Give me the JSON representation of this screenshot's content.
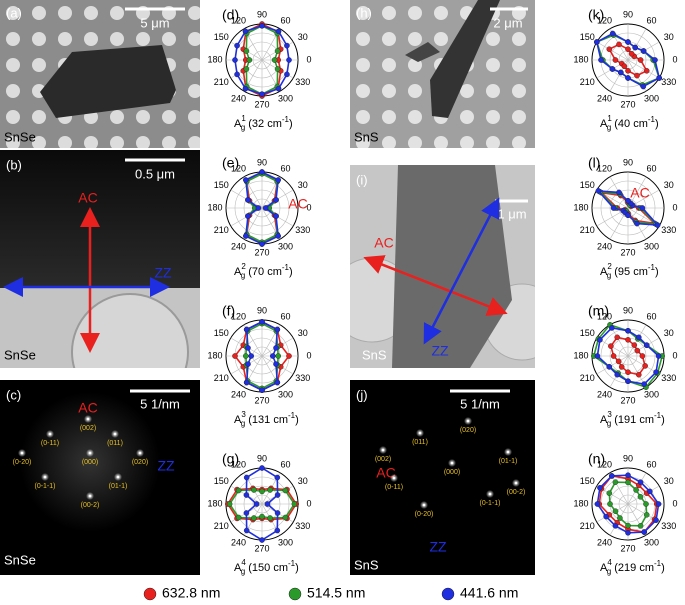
{
  "figure": {
    "image_panels": [
      {
        "label": "(a)",
        "scale_bar": "5 μm",
        "sample": "SnSe"
      },
      {
        "label": "(b)",
        "scale_bar": "0.5 μm",
        "sample": "SnSe",
        "ac": "AC",
        "zz": "ZZ"
      },
      {
        "label": "(c)",
        "scale_bar": "5 1/nm",
        "sample": "SnSe",
        "ac": "AC",
        "zz": "ZZ",
        "spots": [
          "(002)",
          "(0-11)",
          "(011)",
          "(0-20)",
          "(000)",
          "(020)",
          "(0-1-1)",
          "(01-1)",
          "(00-2)"
        ]
      },
      {
        "label": "(h)",
        "scale_bar": "2 μm",
        "sample": "SnS"
      },
      {
        "label": "(i)",
        "scale_bar": "1 μm",
        "sample": "SnS",
        "ac": "AC",
        "zz": "ZZ"
      },
      {
        "label": "(j)",
        "scale_bar": "5 1/nm",
        "sample": "SnS",
        "ac": "AC",
        "zz": "ZZ",
        "spots": [
          "(020)",
          "(002)",
          "(011)",
          "(01-1)",
          "(000)",
          "(0-11)",
          "(00-2)",
          "(0-1-1)",
          "(0-20)"
        ]
      }
    ],
    "polar": {
      "theta_ticks": [
        0,
        30,
        60,
        90,
        120,
        150,
        180,
        210,
        240,
        270,
        300,
        330
      ],
      "rlim": [
        0,
        1
      ],
      "rticks": [
        0.25,
        0.5,
        0.75,
        1
      ],
      "series": [
        {
          "name": "632.8 nm",
          "color": "#e8201e"
        },
        {
          "name": "514.5 nm",
          "color": "#2a9b2a"
        },
        {
          "name": "441.6 nm",
          "color": "#1e2ee0"
        }
      ],
      "plots": [
        {
          "label": "(d)",
          "mode": "A",
          "mode_sub": "g",
          "mode_sup": "1",
          "freq": "(32 cm",
          "freq_sup": "-1",
          "freq_end": ")",
          "values": [
            [
              0.45,
              0.6,
              0.9,
              1,
              0.9,
              0.6,
              0.45,
              0.6,
              0.9,
              1,
              0.9,
              0.6
            ],
            [
              0.35,
              0.5,
              0.85,
              0.95,
              0.85,
              0.5,
              0.35,
              0.5,
              0.85,
              0.95,
              0.85,
              0.5
            ],
            [
              0.75,
              0.8,
              0.92,
              0.95,
              0.92,
              0.8,
              0.75,
              0.8,
              0.92,
              0.95,
              0.92,
              0.8
            ]
          ]
        },
        {
          "label": "(e)",
          "mode": "A",
          "mode_sub": "g",
          "mode_sup": "2",
          "freq": "(70 cm",
          "freq_sup": "-1",
          "freq_end": ")",
          "ac": "AC",
          "values": [
            [
              0.15,
              0.4,
              0.85,
              1,
              0.85,
              0.4,
              0.15,
              0.4,
              0.85,
              1,
              0.85,
              0.4
            ],
            [
              0.2,
              0.45,
              0.85,
              0.95,
              0.85,
              0.45,
              0.2,
              0.45,
              0.85,
              0.95,
              0.85,
              0.45
            ],
            [
              0.1,
              0.45,
              0.9,
              1,
              0.9,
              0.45,
              0.1,
              0.45,
              0.9,
              1,
              0.9,
              0.45
            ]
          ]
        },
        {
          "label": "(f)",
          "mode": "A",
          "mode_sub": "g",
          "mode_sup": "3",
          "freq": "(131 cm",
          "freq_sup": "-1",
          "freq_end": ")",
          "values": [
            [
              0.75,
              0.6,
              0.85,
              0.95,
              0.85,
              0.6,
              0.75,
              0.6,
              0.85,
              0.95,
              0.85,
              0.6
            ],
            [
              0.45,
              0.5,
              0.8,
              0.9,
              0.8,
              0.5,
              0.45,
              0.5,
              0.8,
              0.9,
              0.8,
              0.5
            ],
            [
              0.3,
              0.45,
              0.85,
              0.95,
              0.85,
              0.45,
              0.3,
              0.45,
              0.85,
              0.95,
              0.85,
              0.45
            ]
          ]
        },
        {
          "label": "(g)",
          "mode": "A",
          "mode_sub": "g",
          "mode_sup": "4",
          "freq": "(150 cm",
          "freq_sup": "-1",
          "freq_end": ")",
          "values": [
            [
              0.95,
              0.8,
              0.5,
              0.4,
              0.5,
              0.8,
              0.95,
              0.8,
              0.5,
              0.4,
              0.5,
              0.8
            ],
            [
              0.9,
              0.75,
              0.45,
              0.35,
              0.45,
              0.75,
              0.9,
              0.75,
              0.45,
              0.35,
              0.45,
              0.75
            ],
            [
              0.15,
              0.5,
              0.85,
              1,
              0.85,
              0.5,
              0.15,
              0.5,
              0.85,
              1,
              0.85,
              0.5
            ]
          ]
        },
        {
          "label": "(k)",
          "mode": "A",
          "mode_sub": "g",
          "mode_sup": "1",
          "freq": "(40 cm",
          "freq_sup": "-1",
          "freq_end": ")",
          "values": [
            [
              0.35,
              0.2,
              0.2,
              0.3,
              0.5,
              0.6,
              0.35,
              0.2,
              0.2,
              0.3,
              0.5,
              0.6
            ],
            [
              0.7,
              0.5,
              0.4,
              0.5,
              0.8,
              1,
              0.7,
              0.5,
              0.4,
              0.5,
              0.8,
              1
            ],
            [
              0.75,
              0.5,
              0.4,
              0.5,
              0.85,
              1,
              0.75,
              0.5,
              0.4,
              0.5,
              0.85,
              1
            ]
          ]
        },
        {
          "label": "(l)",
          "mode": "A",
          "mode_sub": "g",
          "mode_sup": "2",
          "freq": "(95 cm",
          "freq_sup": "-1",
          "freq_end": ")",
          "ac": "AC",
          "values": [
            [
              0.3,
              0.1,
              0.1,
              0.15,
              0.4,
              0.85,
              0.3,
              0.1,
              0.1,
              0.15,
              0.4,
              0.85
            ],
            [
              0.35,
              0.15,
              0.1,
              0.2,
              0.45,
              0.9,
              0.35,
              0.15,
              0.1,
              0.2,
              0.45,
              0.9
            ],
            [
              0.4,
              0.15,
              0.15,
              0.2,
              0.5,
              0.95,
              0.4,
              0.15,
              0.15,
              0.2,
              0.5,
              0.95
            ]
          ]
        },
        {
          "label": "(m)",
          "mode": "A",
          "mode_sub": "g",
          "mode_sup": "3",
          "freq": "(191 cm",
          "freq_sup": "-1",
          "freq_end": ")",
          "values": [
            [
              0.4,
              0.3,
              0.35,
              0.45,
              0.6,
              0.55,
              0.4,
              0.3,
              0.35,
              0.45,
              0.6,
              0.55
            ],
            [
              0.95,
              0.6,
              0.55,
              0.7,
              1,
              0.95,
              0.95,
              0.6,
              0.55,
              0.7,
              1,
              0.95
            ],
            [
              0.85,
              0.6,
              0.6,
              0.7,
              0.9,
              0.9,
              0.85,
              0.6,
              0.6,
              0.7,
              0.9,
              0.9
            ]
          ]
        },
        {
          "label": "(n)",
          "mode": "A",
          "mode_sub": "g",
          "mode_sup": "4",
          "freq": "(219 cm",
          "freq_sup": "-1",
          "freq_end": ")",
          "values": [
            [
              0.8,
              0.6,
              0.6,
              0.7,
              0.9,
              0.85,
              0.8,
              0.6,
              0.6,
              0.7,
              0.9,
              0.85
            ],
            [
              0.5,
              0.4,
              0.45,
              0.6,
              0.7,
              0.6,
              0.5,
              0.4,
              0.45,
              0.6,
              0.7,
              0.6
            ],
            [
              0.85,
              0.7,
              0.7,
              0.8,
              0.9,
              0.9,
              0.85,
              0.7,
              0.7,
              0.8,
              0.9,
              0.9
            ]
          ]
        }
      ]
    }
  }
}
